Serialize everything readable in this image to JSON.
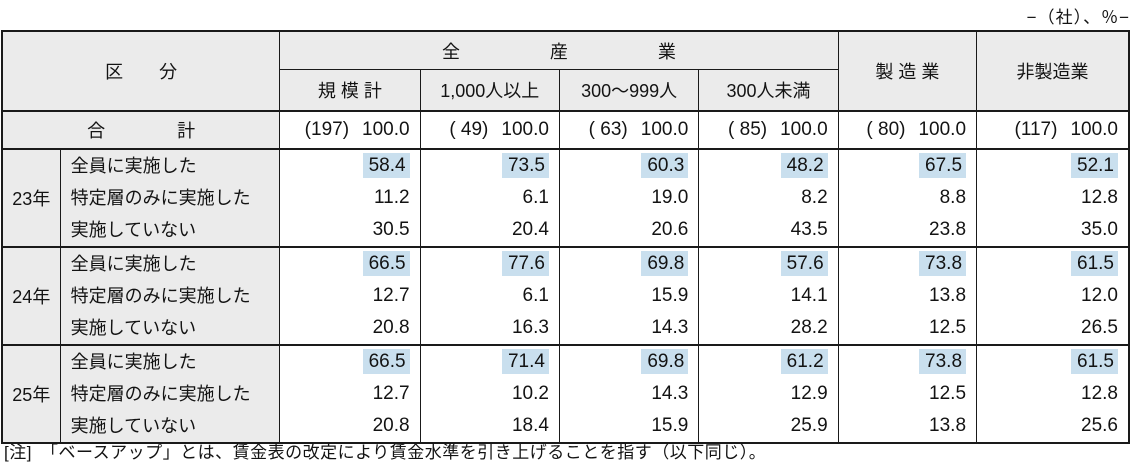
{
  "unit_label": "−（社）、％−",
  "table": {
    "header": {
      "kubun": "区　　分",
      "all_industries": "全　　　　　産　　　　　業",
      "subcols": [
        "規 模 計",
        "1,000人以上",
        "300〜999人",
        "300人未満"
      ],
      "manufacturing": "製 造 業",
      "non_manufacturing": "非製造業"
    },
    "total_row": {
      "label": "合　　　　計",
      "cells": [
        {
          "count": "(197)",
          "pct": "100.0"
        },
        {
          "count": "( 49)",
          "pct": "100.0"
        },
        {
          "count": "( 63)",
          "pct": "100.0"
        },
        {
          "count": "( 85)",
          "pct": "100.0"
        },
        {
          "count": "( 80)",
          "pct": "100.0"
        },
        {
          "count": "(117)",
          "pct": "100.0"
        }
      ]
    },
    "blocks": [
      {
        "year": "23年",
        "rows": [
          {
            "label": "全員に実施した",
            "highlight": true,
            "values": [
              "58.4",
              "73.5",
              "60.3",
              "48.2",
              "67.5",
              "52.1"
            ]
          },
          {
            "label": "特定層のみに実施した",
            "highlight": false,
            "values": [
              "11.2",
              "6.1",
              "19.0",
              "8.2",
              "8.8",
              "12.8"
            ]
          },
          {
            "label": "実施していない",
            "highlight": false,
            "values": [
              "30.5",
              "20.4",
              "20.6",
              "43.5",
              "23.8",
              "35.0"
            ]
          }
        ]
      },
      {
        "year": "24年",
        "rows": [
          {
            "label": "全員に実施した",
            "highlight": true,
            "values": [
              "66.5",
              "77.6",
              "69.8",
              "57.6",
              "73.8",
              "61.5"
            ]
          },
          {
            "label": "特定層のみに実施した",
            "highlight": false,
            "values": [
              "12.7",
              "6.1",
              "15.9",
              "14.1",
              "13.8",
              "12.0"
            ]
          },
          {
            "label": "実施していない",
            "highlight": false,
            "values": [
              "20.8",
              "16.3",
              "14.3",
              "28.2",
              "12.5",
              "26.5"
            ]
          }
        ]
      },
      {
        "year": "25年",
        "rows": [
          {
            "label": "全員に実施した",
            "highlight": true,
            "values": [
              "66.5",
              "71.4",
              "69.8",
              "61.2",
              "73.8",
              "61.5"
            ]
          },
          {
            "label": "特定層のみに実施した",
            "highlight": false,
            "values": [
              "12.7",
              "10.2",
              "14.3",
              "12.9",
              "12.5",
              "12.8"
            ]
          },
          {
            "label": "実施していない",
            "highlight": false,
            "values": [
              "20.8",
              "18.4",
              "15.9",
              "25.9",
              "13.8",
              "25.6"
            ]
          }
        ]
      }
    ]
  },
  "note": "[注]　「ベースアップ」とは、賃金表の改定により賃金水準を引き上げることを指す（以下同じ）。",
  "colors": {
    "highlight": "#c9dfee",
    "header_bg": "#ebebeb",
    "border": "#1a1a1a"
  }
}
